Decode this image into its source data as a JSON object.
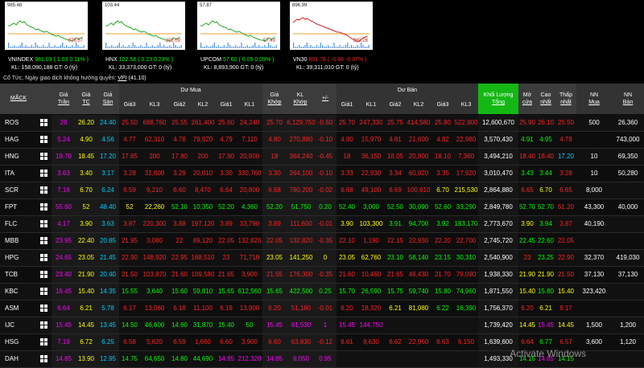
{
  "indices": [
    {
      "name": "VNINDEX",
      "value": "981.03",
      "change": "( 1.03",
      "pct": "0.11% )",
      "kl_label": "KL:",
      "volume": "158,090,188",
      "gt": "GT: 0 (tỷ)",
      "chart_high": "985.48",
      "chart_low": "979.57",
      "trend": "up"
    },
    {
      "name": "HNX",
      "value": "102.58",
      "change": "( 0.23",
      "pct": "0.23% )",
      "kl_label": "KL:",
      "volume": "33,373,000",
      "gt": "GT: 0 (tỷ)",
      "chart_high": "103.44",
      "chart_low": "102.09",
      "trend": "up"
    },
    {
      "name": "UPCOM",
      "value": "57.60",
      "change": "( 0.05",
      "pct": "0.09% )",
      "kl_label": "KL:",
      "volume": "8,893,900",
      "gt": "GT: 0 (tỷ)",
      "chart_high": "57.87",
      "chart_low": "57.49",
      "trend": "up"
    },
    {
      "name": "VN30",
      "value": "891.78",
      "change": "( -0.66",
      "pct": "-0.07% )",
      "kl_label": "KL:",
      "volume": "39,311,010",
      "gt": "GT: 0 (tỷ)",
      "chart_high": "896.99",
      "chart_low": "889.28",
      "trend": "dn"
    }
  ],
  "info_text": "Cổ Tức, Ngày giao dịch không hưởng quyền: ",
  "info_link": "VPI",
  "info_value": "(41.10)",
  "headers": {
    "mack": "MÃCK",
    "tran": [
      "Giá",
      "Trần"
    ],
    "tc": [
      "Giá",
      "TC"
    ],
    "san": [
      "Giá",
      "Sàn"
    ],
    "du_mua": "Dư Mua",
    "buy": [
      "Giá3",
      "KL3",
      "Giá2",
      "KL2",
      "Giá1",
      "KL1"
    ],
    "khop_gia": [
      "Giá",
      "Khớp"
    ],
    "khop_kl": [
      "KL",
      "Khớp"
    ],
    "pm": "+/-",
    "du_ban": "Dư Bán",
    "sell": [
      "Giá1",
      "KL1",
      "Giá2",
      "KL2",
      "Giá3",
      "KL3"
    ],
    "tong": [
      "Khối Lượng",
      "Tổng"
    ],
    "mo": [
      "Mở",
      "cửa"
    ],
    "cao": [
      "Cao",
      "nhất"
    ],
    "thap": [
      "Thấp",
      "nhất"
    ],
    "nnmua": [
      "NN",
      "Mua"
    ],
    "nnban": [
      "NN",
      "Bán"
    ]
  },
  "rows": [
    {
      "sym": "ROS",
      "tran": "28",
      "tc": "26.20",
      "san": "24.40",
      "b3": "25.50",
      "kl3": "688,760",
      "b2": "25.55",
      "kl2": "261,400",
      "b1": "25.60",
      "kl1": "24,240",
      "khop": "25.70",
      "klk": "6,129,750",
      "pm": "-0.50",
      "s1": "25.70",
      "skl1": "247,330",
      "s2": "25.75",
      "skl2": "414,580",
      "s3": "25.80",
      "skl3": "522,900",
      "tong": "12,600,670",
      "mo": "25.90",
      "cao": "26.10",
      "thap": "25.50",
      "nnm": "500",
      "nnb": "26,360",
      "c": {
        "b3": "dn",
        "b2": "dn",
        "b1": "dn",
        "khop": "dn",
        "s1": "dn",
        "s2": "dn",
        "s3": "dn",
        "mo": "dn",
        "cao": "dn",
        "thap": "dn"
      }
    },
    {
      "sym": "HAG",
      "tran": "5.24",
      "tc": "4.90",
      "san": "4.56",
      "b3": "4.77",
      "kl3": "62,310",
      "b2": "4.78",
      "kl2": "79,920",
      "b1": "4.79",
      "kl1": "7,110",
      "khop": "4.80",
      "klk": "270,880",
      "pm": "-0.10",
      "s1": "4.80",
      "skl1": "15,970",
      "s2": "4.81",
      "skl2": "21,600",
      "s3": "4.82",
      "skl3": "22,980",
      "tong": "3,570,430",
      "mo": "4.91",
      "cao": "4.95",
      "thap": "4.78",
      "nnm": "",
      "nnb": "743,000",
      "c": {
        "b3": "dn",
        "b2": "dn",
        "b1": "dn",
        "khop": "dn",
        "s1": "dn",
        "s2": "dn",
        "s3": "dn",
        "mo": "up",
        "cao": "up",
        "thap": "dn"
      }
    },
    {
      "sym": "HNG",
      "tran": "19.70",
      "tc": "18.45",
      "san": "17.20",
      "b3": "17.65",
      "kl3": "200",
      "b2": "17.80",
      "kl2": "200",
      "b1": "17.90",
      "kl1": "20,800",
      "khop": "18",
      "klk": "364,240",
      "pm": "-0.45",
      "s1": "18",
      "skl1": "36,150",
      "s2": "18.05",
      "skl2": "20,800",
      "s3": "18.10",
      "skl3": "7,360",
      "tong": "3,494,210",
      "mo": "18.40",
      "cao": "18.40",
      "thap": "17.20",
      "nnm": "10",
      "nnb": "69,350",
      "c": {
        "b3": "dn",
        "b2": "dn",
        "b1": "dn",
        "khop": "dn",
        "s1": "dn",
        "s2": "dn",
        "s3": "dn",
        "mo": "dn",
        "cao": "dn",
        "thap": "flr"
      }
    },
    {
      "sym": "ITA",
      "tran": "3.63",
      "tc": "3.40",
      "san": "3.17",
      "b3": "3.28",
      "kl3": "31,800",
      "b2": "3.29",
      "kl2": "20,010",
      "b1": "3.30",
      "kl1": "330,760",
      "khop": "3.30",
      "klk": "264,100",
      "pm": "-0.10",
      "s1": "3.33",
      "skl1": "22,930",
      "s2": "3.34",
      "skl2": "60,020",
      "s3": "3.35",
      "skl3": "17,920",
      "tong": "3,010,470",
      "mo": "3.43",
      "cao": "3.44",
      "thap": "3.28",
      "nnm": "10",
      "nnb": "50,280",
      "c": {
        "b3": "dn",
        "b2": "dn",
        "b1": "dn",
        "khop": "dn",
        "s1": "dn",
        "s2": "dn",
        "s3": "dn",
        "mo": "up",
        "cao": "up",
        "thap": "dn"
      }
    },
    {
      "sym": "SCR",
      "tran": "7.16",
      "tc": "6.70",
      "san": "6.24",
      "b3": "6.59",
      "kl3": "9,210",
      "b2": "6.60",
      "kl2": "8,470",
      "b1": "6.64",
      "kl1": "20,800",
      "khop": "6.68",
      "klk": "780,200",
      "pm": "-0.02",
      "s1": "6.68",
      "skl1": "49,100",
      "s2": "6.69",
      "skl2": "100,610",
      "s3": "6.70",
      "skl3": "215,530",
      "tong": "2,864,880",
      "mo": "6.65",
      "cao": "6.70",
      "thap": "6.65",
      "nnm": "8,000",
      "nnb": "",
      "c": {
        "b3": "dn",
        "b2": "dn",
        "b1": "dn",
        "khop": "dn",
        "s1": "dn",
        "s2": "dn",
        "s3": "ref",
        "mo": "dn",
        "cao": "ref",
        "thap": "dn"
      }
    },
    {
      "sym": "FPT",
      "tran": "55.60",
      "tc": "52",
      "san": "48.40",
      "b3": "52",
      "kl3": "22,260",
      "b2": "52.10",
      "kl2": "10,350",
      "b1": "52.20",
      "kl1": "4,360",
      "khop": "52.20",
      "klk": "51,750",
      "pm": "0.20",
      "s1": "52.40",
      "skl1": "3,000",
      "s2": "52.50",
      "skl2": "30,090",
      "s3": "52.60",
      "skl3": "33,290",
      "tong": "2,849,780",
      "mo": "52.70",
      "cao": "52.70",
      "thap": "51.20",
      "nnm": "43,300",
      "nnb": "40,000",
      "c": {
        "b3": "ref",
        "b2": "up",
        "b1": "up",
        "khop": "up",
        "s1": "up",
        "s2": "up",
        "s3": "up",
        "mo": "up",
        "cao": "up",
        "thap": "dn"
      }
    },
    {
      "sym": "FLC",
      "tran": "4.17",
      "tc": "3.90",
      "san": "3.63",
      "b3": "3.87",
      "kl3": "220,300",
      "b2": "3.88",
      "kl2": "197,120",
      "b1": "3.89",
      "kl1": "33,790",
      "khop": "3.89",
      "klk": "111,600",
      "pm": "-0.01",
      "s1": "3.90",
      "skl1": "103,300",
      "s2": "3.91",
      "skl2": "94,700",
      "s3": "3.92",
      "skl3": "183,170",
      "tong": "2,773,670",
      "mo": "3.90",
      "cao": "3.94",
      "thap": "3.87",
      "nnm": "40,190",
      "nnb": "",
      "c": {
        "b3": "dn",
        "b2": "dn",
        "b1": "dn",
        "khop": "dn",
        "s1": "ref",
        "s2": "up",
        "s3": "up",
        "mo": "ref",
        "cao": "up",
        "thap": "dn"
      }
    },
    {
      "sym": "MBB",
      "tran": "23.95",
      "tc": "22.40",
      "san": "20.85",
      "b3": "21.95",
      "kl3": "3,080",
      "b2": "22",
      "kl2": "89,120",
      "b1": "22.05",
      "kl1": "132,820",
      "khop": "22.05",
      "klk": "132,820",
      "pm": "-0.35",
      "s1": "22.10",
      "skl1": "1,190",
      "s2": "22.15",
      "skl2": "22,930",
      "s3": "22.20",
      "skl3": "22,700",
      "tong": "2,745,720",
      "mo": "22.45",
      "cao": "22.60",
      "thap": "22.05",
      "nnm": "",
      "nnb": "",
      "c": {
        "b3": "dn",
        "b2": "dn",
        "b1": "dn",
        "khop": "dn",
        "s1": "dn",
        "s2": "dn",
        "s3": "dn",
        "mo": "up",
        "cao": "up",
        "thap": "dn"
      }
    },
    {
      "sym": "HPG",
      "tran": "24.65",
      "tc": "23.05",
      "san": "21.45",
      "b3": "22.90",
      "kl3": "148,920",
      "b2": "22.95",
      "kl2": "168,510",
      "b1": "23",
      "kl1": "71,710",
      "khop": "23.05",
      "klk": "141,250",
      "pm": "0",
      "s1": "23.05",
      "skl1": "62,760",
      "s2": "23.10",
      "skl2": "58,140",
      "s3": "23.15",
      "skl3": "30,310",
      "tong": "2,540,900",
      "mo": "23",
      "cao": "23.25",
      "thap": "22.90",
      "nnm": "32,370",
      "nnb": "419,030",
      "c": {
        "b3": "dn",
        "b2": "dn",
        "b1": "dn",
        "khop": "ref",
        "s1": "ref",
        "s2": "up",
        "s3": "up",
        "mo": "dn",
        "cao": "up",
        "thap": "dn"
      }
    },
    {
      "sym": "TCB",
      "tran": "23.40",
      "tc": "21.90",
      "san": "20.40",
      "b3": "21.50",
      "kl3": "103,870",
      "b2": "21.60",
      "kl2": "109,580",
      "b1": "21.65",
      "kl1": "3,900",
      "khop": "21.55",
      "klk": "176,300",
      "pm": "-0.35",
      "s1": "21.60",
      "skl1": "10,460",
      "s2": "21.65",
      "skl2": "46,430",
      "s3": "21.70",
      "skl3": "79,090",
      "tong": "1,938,330",
      "mo": "21.90",
      "cao": "21.90",
      "thap": "21.50",
      "nnm": "37,130",
      "nnb": "37,130",
      "c": {
        "b3": "dn",
        "b2": "dn",
        "b1": "dn",
        "khop": "dn",
        "s1": "dn",
        "s2": "dn",
        "s3": "dn",
        "mo": "ref",
        "cao": "ref",
        "thap": "dn"
      }
    },
    {
      "sym": "KBC",
      "tran": "16.45",
      "tc": "15.40",
      "san": "14.35",
      "b3": "15.55",
      "kl3": "3,640",
      "b2": "15.60",
      "kl2": "59,810",
      "b1": "15.65",
      "kl1": "612,560",
      "khop": "15.65",
      "klk": "422,500",
      "pm": "0.25",
      "s1": "15.70",
      "skl1": "26,590",
      "s2": "15.75",
      "skl2": "59,740",
      "s3": "15.80",
      "skl3": "74,960",
      "tong": "1,871,550",
      "mo": "15.40",
      "cao": "15.80",
      "thap": "15.40",
      "nnm": "323,420",
      "nnb": "",
      "c": {
        "b3": "up",
        "b2": "up",
        "b1": "up",
        "khop": "up",
        "s1": "up",
        "s2": "up",
        "s3": "up",
        "mo": "ref",
        "cao": "up",
        "thap": "ref"
      }
    },
    {
      "sym": "ASM",
      "tran": "6.64",
      "tc": "6.21",
      "san": "5.78",
      "b3": "6.17",
      "kl3": "13,060",
      "b2": "6.18",
      "kl2": "11,100",
      "b1": "6.19",
      "kl1": "13,900",
      "khop": "6.20",
      "klk": "51,180",
      "pm": "-0.01",
      "s1": "6.20",
      "skl1": "18,320",
      "s2": "6.21",
      "skl2": "81,080",
      "s3": "6.22",
      "skl3": "16,390",
      "tong": "1,756,370",
      "mo": "6.20",
      "cao": "6.21",
      "thap": "6.17",
      "nnm": "",
      "nnb": "",
      "c": {
        "b3": "dn",
        "b2": "dn",
        "b1": "dn",
        "khop": "dn",
        "s1": "dn",
        "s2": "ref",
        "s3": "up",
        "mo": "dn",
        "cao": "ref",
        "thap": "dn"
      }
    },
    {
      "sym": "IJC",
      "tran": "15.45",
      "tc": "14.45",
      "san": "13.45",
      "b3": "14.50",
      "kl3": "46,600",
      "b2": "14.60",
      "kl2": "31,870",
      "b1": "15.40",
      "kl1": "50",
      "khop": "15.45",
      "klk": "61,530",
      "pm": "1",
      "s1": "15.45",
      "skl1": "144,750",
      "s2": "",
      "skl2": "",
      "s3": "",
      "skl3": "",
      "tong": "1,739,420",
      "mo": "14.45",
      "cao": "15.45",
      "thap": "14.45",
      "nnm": "1,500",
      "nnb": "1,200",
      "c": {
        "b3": "up",
        "b2": "up",
        "b1": "up",
        "khop": "ceil",
        "s1": "ceil",
        "s2": "wh",
        "s3": "wh",
        "mo": "ref",
        "cao": "ceil",
        "thap": "ref"
      }
    },
    {
      "sym": "HSG",
      "tran": "7.19",
      "tc": "6.72",
      "san": "6.25",
      "b3": "6.58",
      "kl3": "5,620",
      "b2": "6.59",
      "kl2": "1,660",
      "b1": "6.60",
      "kl1": "3,900",
      "khop": "6.60",
      "klk": "63,830",
      "pm": "-0.12",
      "s1": "6.61",
      "skl1": "9,630",
      "s2": "6.62",
      "skl2": "22,960",
      "s3": "6.63",
      "skl3": "6,150",
      "tong": "1,639,600",
      "mo": "6.64",
      "cao": "6.77",
      "thap": "6.57",
      "nnm": "3,600",
      "nnb": "1,120",
      "c": {
        "b3": "dn",
        "b2": "dn",
        "b1": "dn",
        "khop": "dn",
        "s1": "dn",
        "s2": "dn",
        "s3": "dn",
        "mo": "dn",
        "cao": "up",
        "thap": "dn"
      }
    },
    {
      "sym": "DAH",
      "tran": "14.85",
      "tc": "13.90",
      "san": "12.95",
      "b3": "14.75",
      "kl3": "64,650",
      "b2": "14.80",
      "kl2": "44,690",
      "b1": "14.85",
      "kl1": "212,320",
      "khop": "14.85",
      "klk": "6,050",
      "pm": "0.95",
      "s1": "",
      "skl1": "",
      "s2": "",
      "skl2": "",
      "s3": "",
      "skl3": "",
      "tong": "1,493,330",
      "mo": "14.15",
      "cao": "14.85",
      "thap": "14.15",
      "nnm": "",
      "nnb": "",
      "c": {
        "b3": "up",
        "b2": "up",
        "b1": "ceil",
        "khop": "ceil",
        "s1": "wh",
        "s2": "wh",
        "s3": "wh",
        "mo": "up",
        "cao": "ceil",
        "thap": "up"
      }
    }
  ],
  "watermark": "Activate Windows",
  "colors": {
    "up": "#00ff00",
    "down": "#ff2222",
    "ref": "#ffff00",
    "ceil": "#ff00ff",
    "floor": "#00ccff",
    "highlight": "#14b814"
  }
}
